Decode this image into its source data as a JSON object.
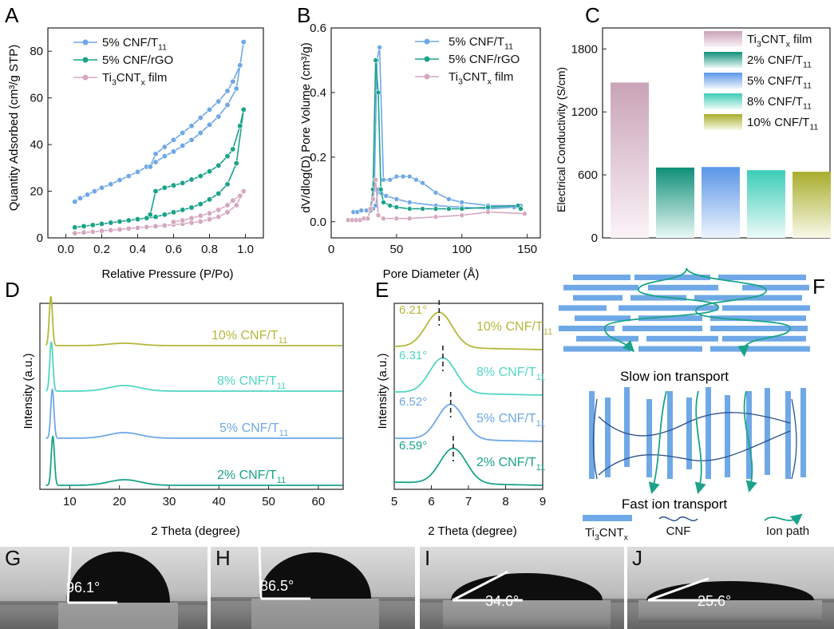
{
  "colors": {
    "blue": "#6fa8e6",
    "green": "#1aa38a",
    "pink": "#d6a8c0",
    "olive": "#b3b83a",
    "teal": "#52d6c2",
    "axis": "#222222"
  },
  "panel_letters": [
    "A",
    "B",
    "C",
    "D",
    "E",
    "F",
    "G",
    "H",
    "I",
    "J"
  ],
  "chart_data": [
    {
      "panel": "A",
      "type": "line",
      "ylabel": "Quantity Adsorbed (cm³/g STP)",
      "xlabel": "Relative Pressure (P/Po)",
      "xlim": [
        -0.1,
        1.1
      ],
      "ylim": [
        0,
        90
      ],
      "xticks": [
        "0.0",
        "0.2",
        "0.4",
        "0.6",
        "0.8",
        "1.0"
      ],
      "yticks": [
        "0",
        "20",
        "40",
        "60",
        "80"
      ],
      "series": [
        {
          "name": "5% CNF/T11",
          "color": "blue",
          "x": [
            0.05,
            0.08,
            0.12,
            0.16,
            0.2,
            0.25,
            0.3,
            0.35,
            0.4,
            0.45,
            0.5,
            0.55,
            0.6,
            0.65,
            0.7,
            0.75,
            0.8,
            0.85,
            0.9,
            0.95,
            0.99,
            0.97,
            0.93,
            0.9,
            0.85,
            0.8,
            0.75,
            0.7,
            0.65,
            0.6,
            0.55,
            0.5,
            0.47
          ],
          "y": [
            15.5,
            17,
            18.5,
            20,
            21.5,
            23,
            24.8,
            26.5,
            28.3,
            30.5,
            32.5,
            35,
            37,
            39.5,
            42,
            45,
            48.5,
            52,
            57,
            64,
            84,
            74,
            67,
            63,
            58.5,
            55,
            51.5,
            48,
            45,
            42,
            39,
            36,
            30.5
          ]
        },
        {
          "name": "5% CNF/rGO",
          "color": "green",
          "x": [
            0.05,
            0.1,
            0.15,
            0.2,
            0.25,
            0.3,
            0.35,
            0.4,
            0.45,
            0.5,
            0.55,
            0.6,
            0.65,
            0.7,
            0.75,
            0.8,
            0.85,
            0.9,
            0.95,
            0.99,
            0.97,
            0.93,
            0.9,
            0.85,
            0.8,
            0.75,
            0.7,
            0.65,
            0.6,
            0.55,
            0.5,
            0.47
          ],
          "y": [
            4.5,
            5,
            5.5,
            6,
            6.5,
            7,
            7.5,
            8,
            8.5,
            9,
            10,
            11,
            12,
            13,
            14.5,
            16.5,
            19,
            23,
            32,
            55,
            48,
            38,
            35,
            31,
            28.5,
            26.5,
            25,
            23.5,
            22.5,
            21.5,
            20,
            10
          ]
        },
        {
          "name": "Ti3CNTx film",
          "color": "pink",
          "x": [
            0.05,
            0.1,
            0.15,
            0.2,
            0.25,
            0.3,
            0.35,
            0.4,
            0.45,
            0.5,
            0.55,
            0.6,
            0.65,
            0.7,
            0.75,
            0.8,
            0.85,
            0.9,
            0.95,
            0.99,
            0.97,
            0.93,
            0.9,
            0.85,
            0.8,
            0.75,
            0.7,
            0.65,
            0.6
          ],
          "y": [
            2,
            2.3,
            2.6,
            3,
            3.3,
            3.6,
            4,
            4.3,
            4.7,
            5,
            5.3,
            5.7,
            6,
            6.5,
            7,
            8,
            9,
            11,
            14,
            20,
            18,
            16,
            14,
            12,
            10.5,
            9.5,
            8.5,
            7.5,
            6.8
          ]
        }
      ]
    },
    {
      "panel": "B",
      "type": "line",
      "ylabel": "dV/dlog(D) Pore Volume (cm³/g)",
      "xlabel": "Pore Diameter (Å)",
      "xlim": [
        0,
        160
      ],
      "ylim": [
        -0.05,
        0.6
      ],
      "xticks": [
        "0",
        "50",
        "100",
        "150"
      ],
      "yticks": [
        "0.0",
        "0.2",
        "0.4",
        "0.6"
      ],
      "series": [
        {
          "name": "5% CNF/T11",
          "color": "blue",
          "x": [
            17,
            20,
            23,
            27,
            30,
            33,
            35,
            37,
            40,
            45,
            50,
            55,
            60,
            65,
            70,
            80,
            90,
            100,
            120,
            145,
            140,
            120,
            100,
            80,
            60,
            50,
            42,
            38,
            36,
            34,
            32
          ],
          "y": [
            0.03,
            0.03,
            0.035,
            0.035,
            0.04,
            0.1,
            0.5,
            0.54,
            0.13,
            0.13,
            0.14,
            0.14,
            0.14,
            0.13,
            0.12,
            0.09,
            0.07,
            0.06,
            0.05,
            0.05,
            0.045,
            0.04,
            0.045,
            0.05,
            0.06,
            0.07,
            0.08,
            0.09,
            0.1,
            0.05,
            0.04
          ]
        },
        {
          "name": "5% CNF/rGO",
          "color": "green",
          "x": [
            30,
            32,
            34,
            36,
            38,
            40,
            45,
            50,
            60,
            70,
            80,
            90,
            100,
            120,
            143,
            145
          ],
          "y": [
            0.035,
            0.1,
            0.5,
            0.4,
            0.1,
            0.06,
            0.05,
            0.045,
            0.04,
            0.04,
            0.04,
            0.04,
            0.04,
            0.045,
            0.05,
            0.04
          ]
        },
        {
          "name": "Ti3CNTx film",
          "color": "pink",
          "x": [
            13,
            16,
            19,
            22,
            25,
            28,
            30,
            32,
            34,
            36,
            40,
            50,
            60,
            80,
            100,
            120,
            148
          ],
          "y": [
            0.005,
            0.005,
            0.005,
            0.005,
            0.01,
            0.01,
            0.04,
            0.07,
            0.13,
            0.02,
            0.01,
            0.01,
            0.01,
            0.015,
            0.02,
            0.03,
            0.025
          ]
        }
      ]
    },
    {
      "panel": "C",
      "type": "bar",
      "ylabel": "Electrical Conductivity (S/cm)",
      "ylim": [
        0,
        2000
      ],
      "yticks": [
        "0",
        "600",
        "1200",
        "1800"
      ],
      "categories": [
        "Ti3CNTx film",
        "2% CNF/T11",
        "5% CNF/T11",
        "8% CNF/T11",
        "10% CNF/T11"
      ],
      "values": [
        1480,
        670,
        675,
        645,
        630
      ],
      "colors": [
        "pink",
        "green",
        "blue",
        "teal",
        "olive"
      ]
    },
    {
      "panel": "D",
      "type": "line",
      "ylabel": "Intensity (a.u.)",
      "xlabel": "2 Theta (degree)",
      "xlim": [
        4,
        65
      ],
      "xticks": [
        "10",
        "20",
        "30",
        "40",
        "50",
        "60"
      ],
      "series": [
        {
          "name": "10% CNF/T11",
          "color": "olive",
          "peak": 6.2,
          "offset": 3
        },
        {
          "name": "8% CNF/T11",
          "color": "teal",
          "peak": 6.3,
          "offset": 2
        },
        {
          "name": "5% CNF/T11",
          "color": "blue",
          "peak": 6.5,
          "offset": 1
        },
        {
          "name": "2% CNF/T11",
          "color": "green",
          "peak": 6.6,
          "offset": 0
        }
      ]
    },
    {
      "panel": "E",
      "type": "line",
      "ylabel": "Intensity (a.u.)",
      "xlabel": "2 Theta (degree)",
      "xlim": [
        5,
        9
      ],
      "xticks": [
        "5",
        "6",
        "7",
        "8",
        "9"
      ],
      "series": [
        {
          "name": "10% CNF/T11",
          "color": "olive",
          "peak": 6.21,
          "peak_label": "6.21°"
        },
        {
          "name": "8% CNF/T11",
          "color": "teal",
          "peak": 6.31,
          "peak_label": "6.31°"
        },
        {
          "name": "5% CNF/T11",
          "color": "blue",
          "peak": 6.52,
          "peak_label": "6.52°"
        },
        {
          "name": "2% CNF/T11",
          "color": "green",
          "peak": 6.59,
          "peak_label": "6.59°"
        }
      ]
    }
  ],
  "panelF": {
    "slow_label": "Slow ion transport",
    "fast_label": "Fast ion transport",
    "legend": [
      {
        "label": "Ti3CNTx"
      },
      {
        "label": "CNF"
      },
      {
        "label": "Ion path"
      }
    ]
  },
  "contact_angles": [
    {
      "panel": "G",
      "angle": "96.1°"
    },
    {
      "panel": "H",
      "angle": "86.5°"
    },
    {
      "panel": "I",
      "angle": "34.6°"
    },
    {
      "panel": "J",
      "angle": "25.6°"
    }
  ]
}
